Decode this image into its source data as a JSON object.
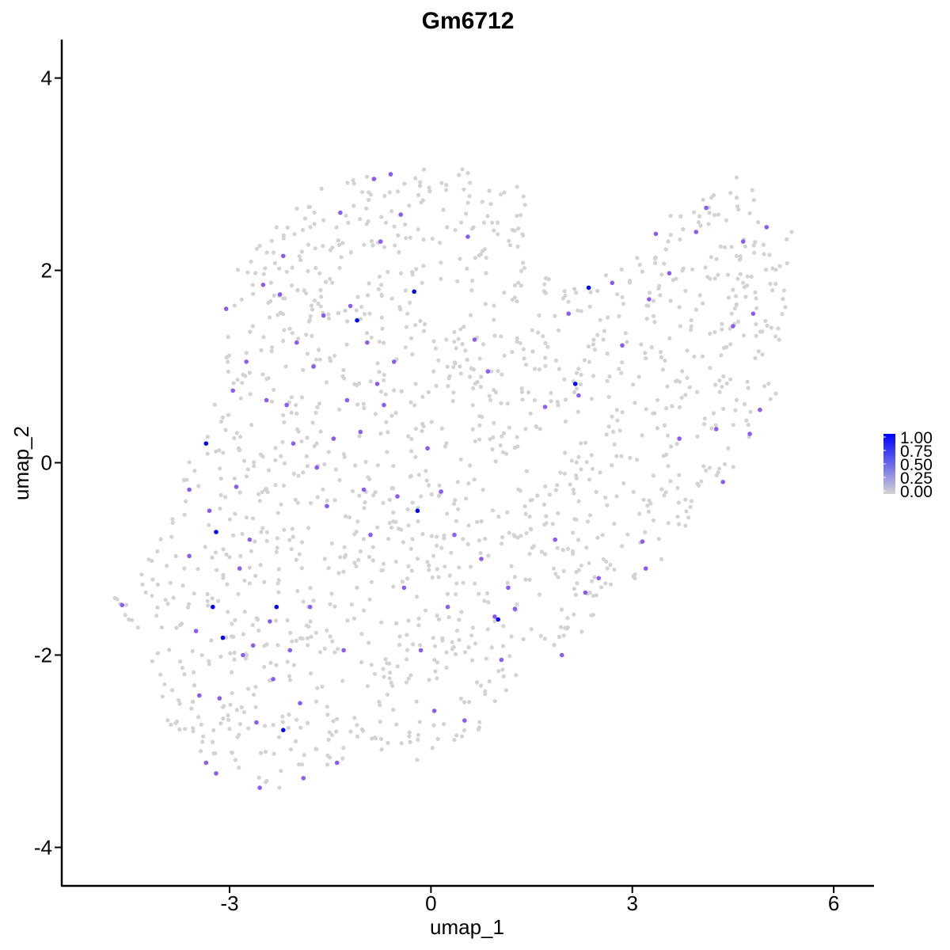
{
  "chart_data": {
    "type": "scatter",
    "title": "Gm6712",
    "xlabel": "umap_1",
    "ylabel": "umap_2",
    "xlim": [
      -5.5,
      6.6
    ],
    "ylim": [
      -4.4,
      4.4
    ],
    "xticks": [
      -3,
      0,
      3,
      6
    ],
    "yticks": [
      -4,
      -2,
      0,
      2,
      4
    ],
    "grid": false,
    "legend": {
      "placement": "right",
      "type": "colorbar",
      "labels": [
        "1.00",
        "0.75",
        "0.50",
        "0.25",
        "0.00"
      ],
      "values": [
        1.0,
        0.75,
        0.5,
        0.25,
        0.0
      ],
      "low_color": "#d3d3d3",
      "high_color": "#0000ff"
    },
    "colors": {
      "zero": "#d3d3d3",
      "mid": "#8a5cf5",
      "high": "#0000ff"
    },
    "points_expressed": [
      {
        "x": -4.6,
        "y": -1.48,
        "v": 0.5
      },
      {
        "x": -3.6,
        "y": -0.28,
        "v": 0.5
      },
      {
        "x": -3.6,
        "y": -0.97,
        "v": 0.5
      },
      {
        "x": -3.5,
        "y": -1.75,
        "v": 0.5
      },
      {
        "x": -3.35,
        "y": 0.2,
        "v": 1.0
      },
      {
        "x": -3.35,
        "y": -3.12,
        "v": 0.5
      },
      {
        "x": -3.45,
        "y": -2.42,
        "v": 0.5
      },
      {
        "x": -3.3,
        "y": -0.5,
        "v": 0.5
      },
      {
        "x": -3.2,
        "y": -0.72,
        "v": 1.0
      },
      {
        "x": -3.25,
        "y": -1.5,
        "v": 1.0
      },
      {
        "x": -3.1,
        "y": -1.82,
        "v": 1.0
      },
      {
        "x": -3.15,
        "y": -2.45,
        "v": 0.5
      },
      {
        "x": -3.2,
        "y": -3.23,
        "v": 0.5
      },
      {
        "x": -3.05,
        "y": 1.6,
        "v": 0.5
      },
      {
        "x": -2.95,
        "y": 0.75,
        "v": 0.5
      },
      {
        "x": -2.9,
        "y": -0.25,
        "v": 0.5
      },
      {
        "x": -2.85,
        "y": -1.1,
        "v": 0.5
      },
      {
        "x": -2.8,
        "y": -2.0,
        "v": 0.5
      },
      {
        "x": -2.75,
        "y": 1.05,
        "v": 0.5
      },
      {
        "x": -2.7,
        "y": -0.8,
        "v": 0.5
      },
      {
        "x": -2.65,
        "y": -1.9,
        "v": 0.5
      },
      {
        "x": -2.6,
        "y": -2.7,
        "v": 0.5
      },
      {
        "x": -2.55,
        "y": -3.38,
        "v": 0.5
      },
      {
        "x": -2.5,
        "y": 1.85,
        "v": 0.5
      },
      {
        "x": -2.45,
        "y": 0.65,
        "v": 0.5
      },
      {
        "x": -2.4,
        "y": -1.65,
        "v": 0.5
      },
      {
        "x": -2.3,
        "y": -1.5,
        "v": 1.0
      },
      {
        "x": -2.35,
        "y": -2.25,
        "v": 0.5
      },
      {
        "x": -2.25,
        "y": 1.75,
        "v": 0.5
      },
      {
        "x": -2.2,
        "y": 2.15,
        "v": 0.5
      },
      {
        "x": -2.2,
        "y": -2.78,
        "v": 1.0
      },
      {
        "x": -2.15,
        "y": 0.6,
        "v": 0.5
      },
      {
        "x": -2.1,
        "y": -1.95,
        "v": 0.5
      },
      {
        "x": -2.05,
        "y": 0.2,
        "v": 0.5
      },
      {
        "x": -2.0,
        "y": 1.25,
        "v": 0.5
      },
      {
        "x": -1.95,
        "y": -2.5,
        "v": 0.5
      },
      {
        "x": -1.9,
        "y": -3.28,
        "v": 0.5
      },
      {
        "x": -1.8,
        "y": -1.5,
        "v": 0.5
      },
      {
        "x": -1.75,
        "y": 1.0,
        "v": 0.5
      },
      {
        "x": -1.7,
        "y": -0.05,
        "v": 0.5
      },
      {
        "x": -1.6,
        "y": 1.53,
        "v": 0.5
      },
      {
        "x": -1.55,
        "y": -0.45,
        "v": 0.5
      },
      {
        "x": -1.45,
        "y": 0.25,
        "v": 0.5
      },
      {
        "x": -1.4,
        "y": -3.12,
        "v": 0.5
      },
      {
        "x": -1.35,
        "y": 2.6,
        "v": 0.5
      },
      {
        "x": -1.3,
        "y": -1.95,
        "v": 0.5
      },
      {
        "x": -1.25,
        "y": 0.65,
        "v": 0.5
      },
      {
        "x": -1.2,
        "y": 1.63,
        "v": 0.5
      },
      {
        "x": -1.1,
        "y": 1.48,
        "v": 1.0
      },
      {
        "x": -1.05,
        "y": 0.32,
        "v": 0.5
      },
      {
        "x": -1.0,
        "y": -0.28,
        "v": 0.5
      },
      {
        "x": -0.95,
        "y": 1.25,
        "v": 0.5
      },
      {
        "x": -0.9,
        "y": -0.75,
        "v": 0.5
      },
      {
        "x": -0.85,
        "y": 2.95,
        "v": 0.5
      },
      {
        "x": -0.8,
        "y": 0.82,
        "v": 0.5
      },
      {
        "x": -0.75,
        "y": 2.3,
        "v": 0.5
      },
      {
        "x": -0.7,
        "y": 0.6,
        "v": 0.5
      },
      {
        "x": -0.6,
        "y": 3.0,
        "v": 0.5
      },
      {
        "x": -0.55,
        "y": 1.05,
        "v": 0.5
      },
      {
        "x": -0.5,
        "y": -0.35,
        "v": 0.5
      },
      {
        "x": -0.45,
        "y": 2.58,
        "v": 0.5
      },
      {
        "x": -0.4,
        "y": -1.3,
        "v": 0.5
      },
      {
        "x": -0.25,
        "y": 1.78,
        "v": 1.0
      },
      {
        "x": -0.2,
        "y": -0.5,
        "v": 1.0
      },
      {
        "x": -0.15,
        "y": -1.95,
        "v": 0.5
      },
      {
        "x": -0.05,
        "y": 0.15,
        "v": 0.5
      },
      {
        "x": 0.05,
        "y": -2.58,
        "v": 0.5
      },
      {
        "x": 0.15,
        "y": -0.3,
        "v": 0.5
      },
      {
        "x": 0.25,
        "y": -1.5,
        "v": 0.5
      },
      {
        "x": 0.35,
        "y": -0.75,
        "v": 0.5
      },
      {
        "x": 0.5,
        "y": -2.68,
        "v": 0.5
      },
      {
        "x": 0.55,
        "y": 2.35,
        "v": 0.5
      },
      {
        "x": 0.65,
        "y": 1.28,
        "v": 0.5
      },
      {
        "x": 0.75,
        "y": -1.0,
        "v": 0.5
      },
      {
        "x": 0.85,
        "y": 0.95,
        "v": 0.5
      },
      {
        "x": 0.95,
        "y": -1.6,
        "v": 0.5
      },
      {
        "x": 1.0,
        "y": -1.63,
        "v": 1.0
      },
      {
        "x": 1.05,
        "y": -2.05,
        "v": 0.5
      },
      {
        "x": 1.15,
        "y": -1.3,
        "v": 0.5
      },
      {
        "x": 1.25,
        "y": -1.52,
        "v": 0.5
      },
      {
        "x": 1.7,
        "y": 0.58,
        "v": 0.5
      },
      {
        "x": 1.85,
        "y": -0.8,
        "v": 0.5
      },
      {
        "x": 1.95,
        "y": -2.0,
        "v": 0.5
      },
      {
        "x": 2.05,
        "y": 1.55,
        "v": 0.5
      },
      {
        "x": 2.15,
        "y": 0.82,
        "v": 1.0
      },
      {
        "x": 2.2,
        "y": 0.7,
        "v": 0.5
      },
      {
        "x": 2.3,
        "y": -1.35,
        "v": 0.5
      },
      {
        "x": 2.35,
        "y": 1.82,
        "v": 1.0
      },
      {
        "x": 2.5,
        "y": -1.2,
        "v": 0.5
      },
      {
        "x": 2.7,
        "y": 1.87,
        "v": 0.5
      },
      {
        "x": 2.85,
        "y": 1.22,
        "v": 0.5
      },
      {
        "x": 3.15,
        "y": -0.82,
        "v": 0.5
      },
      {
        "x": 3.2,
        "y": -1.1,
        "v": 0.5
      },
      {
        "x": 3.25,
        "y": 1.7,
        "v": 0.5
      },
      {
        "x": 3.35,
        "y": 2.38,
        "v": 0.5
      },
      {
        "x": 3.55,
        "y": 1.97,
        "v": 0.5
      },
      {
        "x": 3.7,
        "y": 0.25,
        "v": 0.5
      },
      {
        "x": 3.95,
        "y": 2.4,
        "v": 0.5
      },
      {
        "x": 4.1,
        "y": 2.65,
        "v": 0.5
      },
      {
        "x": 4.25,
        "y": 0.35,
        "v": 0.5
      },
      {
        "x": 4.35,
        "y": -0.2,
        "v": 0.5
      },
      {
        "x": 4.5,
        "y": 1.42,
        "v": 0.5
      },
      {
        "x": 4.65,
        "y": 2.3,
        "v": 0.5
      },
      {
        "x": 4.75,
        "y": 0.3,
        "v": 0.5
      },
      {
        "x": 4.8,
        "y": 1.55,
        "v": 0.5
      },
      {
        "x": 4.9,
        "y": 0.55,
        "v": 0.5
      },
      {
        "x": 5.0,
        "y": 2.45,
        "v": 0.5
      }
    ]
  }
}
